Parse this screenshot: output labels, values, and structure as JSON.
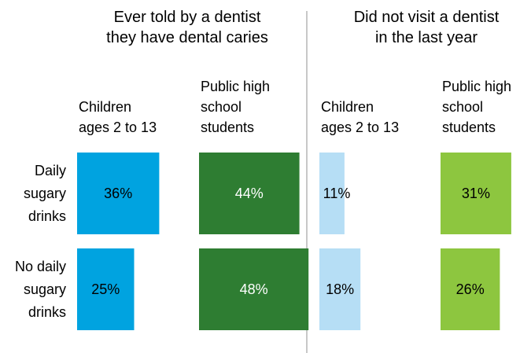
{
  "chart_data": {
    "type": "bar",
    "orientation": "horizontal",
    "panels": [
      {
        "title_lines": [
          "Ever told by a dentist",
          "they have dental caries"
        ],
        "columns": [
          {
            "label_lines": [
              "Children",
              "ages 2 to 13"
            ],
            "color": "#00a3e0",
            "values": [
              36,
              25
            ],
            "labels": [
              "36%",
              "25%"
            ]
          },
          {
            "label_lines": [
              "Public high",
              "school",
              "students"
            ],
            "color": "#2e7d32",
            "label_color": "#ffffff",
            "values": [
              44,
              48
            ],
            "labels": [
              "44%",
              "48%"
            ]
          }
        ]
      },
      {
        "title_lines": [
          "Did not visit a dentist",
          "in the last year"
        ],
        "columns": [
          {
            "label_lines": [
              "Children",
              "ages 2 to 13"
            ],
            "color": "#b6def5",
            "values": [
              11,
              18
            ],
            "labels": [
              "11%",
              "18%"
            ]
          },
          {
            "label_lines": [
              "Public high",
              "school",
              "students"
            ],
            "color": "#8dc63f",
            "values": [
              31,
              26
            ],
            "labels": [
              "31%",
              "26%"
            ]
          }
        ]
      }
    ],
    "rows": [
      {
        "label_lines": [
          "Daily",
          "sugary",
          "drinks"
        ]
      },
      {
        "label_lines": [
          "No daily",
          "sugary",
          "drinks"
        ]
      }
    ]
  }
}
